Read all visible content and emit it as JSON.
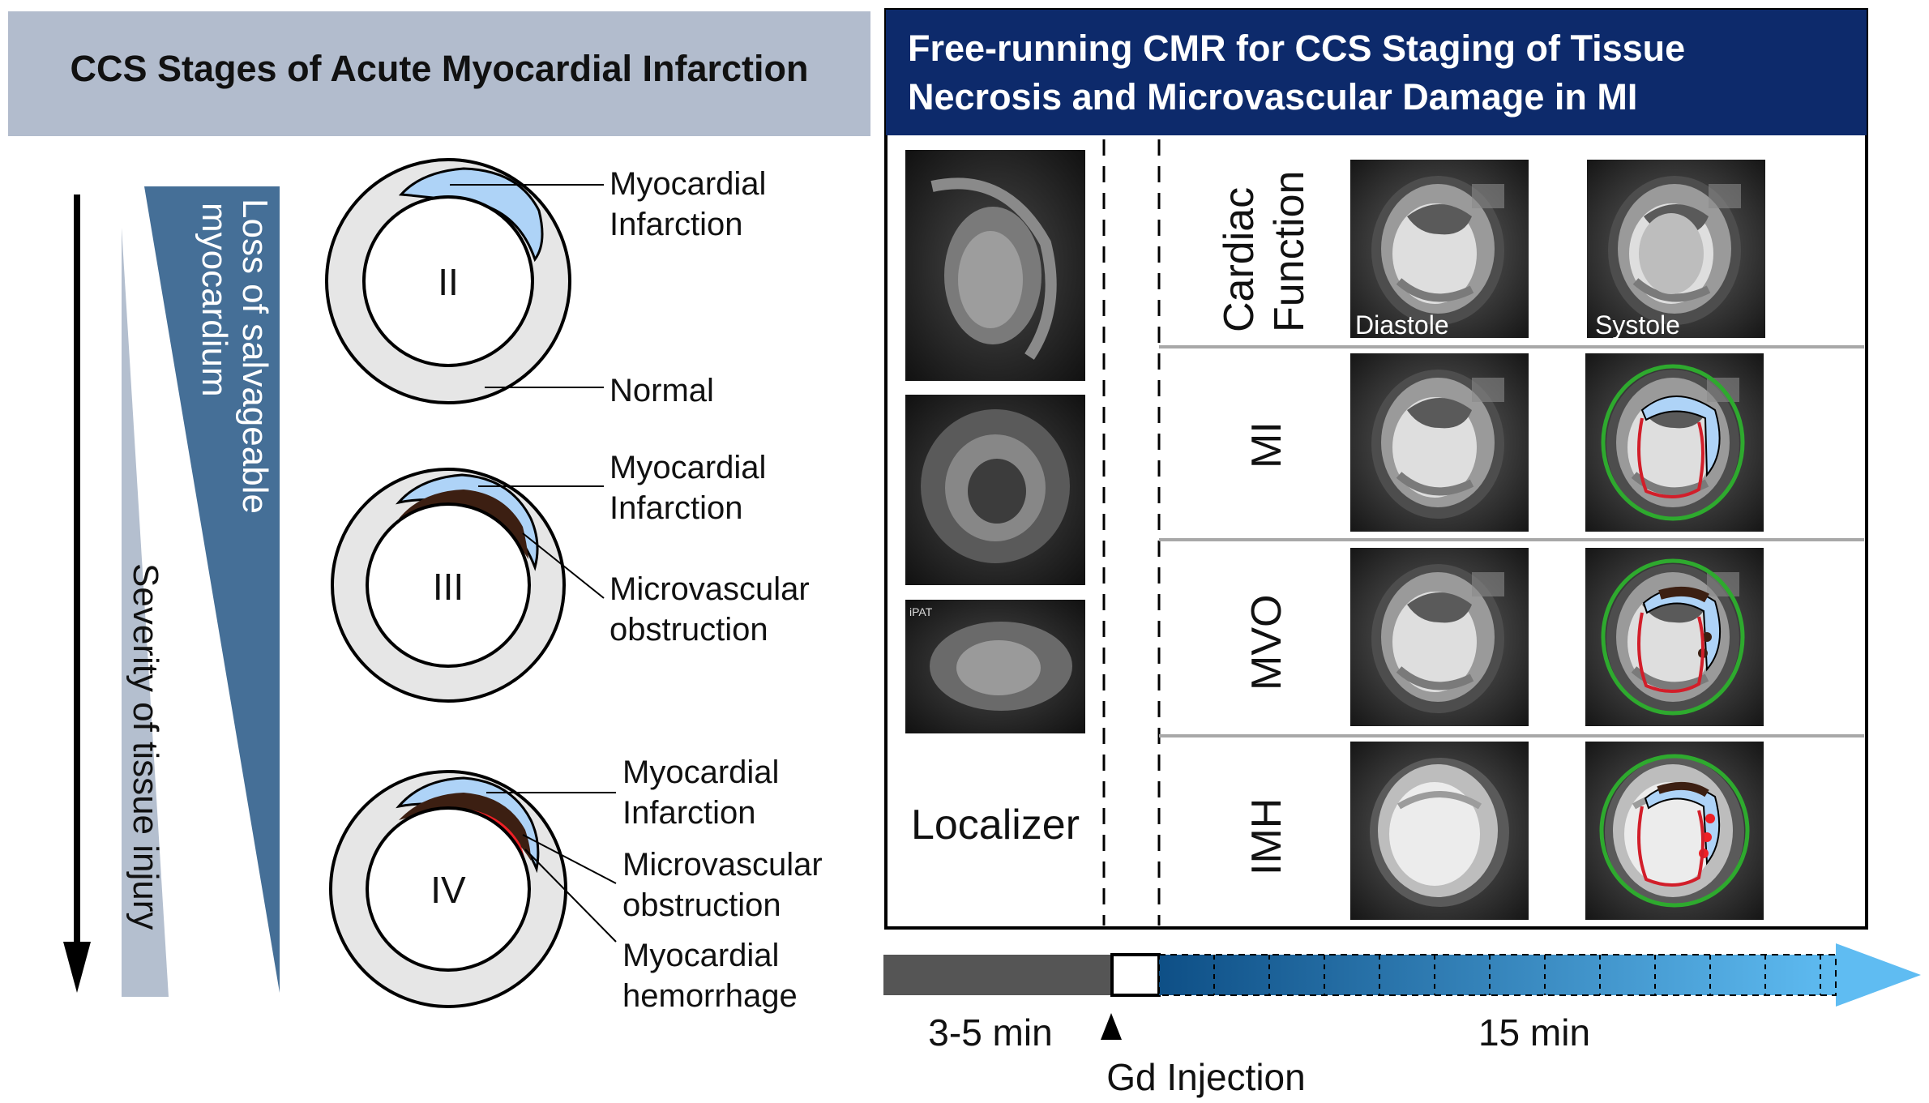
{
  "left_panel": {
    "title": "CCS Stages of Acute Myocardial Infarction",
    "wedge_salvage_label_line1": "Loss of salvageable",
    "wedge_salvage_label_line2": "myocardium",
    "wedge_severity_label": "Severity of tissue injury",
    "stages": [
      {
        "roman": "II",
        "labels": [
          "Myocardial",
          "Infarction",
          "Normal"
        ]
      },
      {
        "roman": "III",
        "labels": [
          "Myocardial",
          "Infarction",
          "Microvascular",
          "obstruction"
        ]
      },
      {
        "roman": "IV",
        "labels": [
          "Myocardial",
          "Infarction",
          "Microvascular",
          "obstruction",
          "Myocardial",
          "hemorrhage"
        ]
      }
    ]
  },
  "right_panel": {
    "title_line1": "Free-running CMR for CCS Staging of Tissue",
    "title_line2": "Necrosis and Microvascular Damage in MI",
    "localizer_label": "Localizer",
    "localizer_inset_text": "iPAT",
    "rows": [
      {
        "label_line1": "Cardiac",
        "label_line2": "Function",
        "image_left_caption": "Diastole",
        "image_right_caption": "Systole"
      },
      {
        "label_line1": "MI"
      },
      {
        "label_line1": "MVO"
      },
      {
        "label_line1": "IMH"
      }
    ]
  },
  "timeline": {
    "left_duration": "3-5 min",
    "right_duration": "15 min",
    "injection_label": "Gd Injection"
  },
  "colors": {
    "left_title_bg": "#b2bccd",
    "right_title_bg": "#0d2a6b",
    "wedge_dark": "#456f97",
    "wedge_light": "#b4bfcf",
    "myocardium": "#e6e6e6",
    "infarct": "#aed3f7",
    "mvo": "#3c1f12",
    "hemorrhage": "#ee2026",
    "segmentation_green": "#2eaa2e",
    "segmentation_red": "#d21e2a",
    "timeline_gray": "#555555",
    "arrow_start": "#0e4f86",
    "arrow_end": "#5fbcf2"
  }
}
